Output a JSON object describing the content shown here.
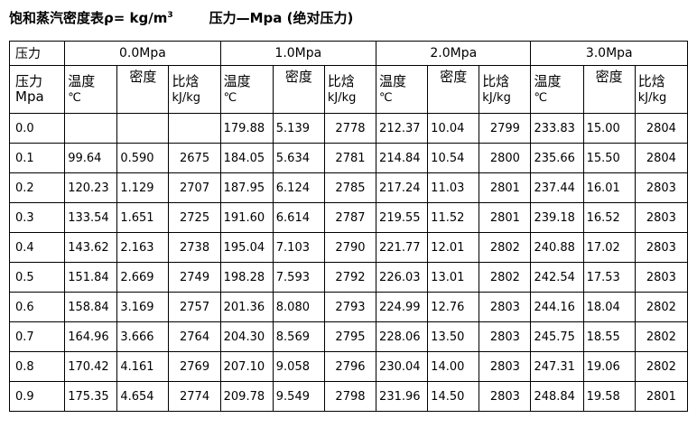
{
  "title": {
    "main": "饱和蒸汽密度表ρ= kg/m",
    "sup": "3",
    "sub": "压力—Mpa (绝对压力)"
  },
  "header": {
    "pressure_label": "压力",
    "groups": [
      "0.0Mpa",
      "1.0Mpa",
      "2.0Mpa",
      "3.0Mpa"
    ],
    "pressure_col": [
      "压力",
      "Mpa"
    ],
    "temp": [
      "温度",
      "℃"
    ],
    "density": "密度",
    "enthalpy": [
      "比焓",
      "kJ/kg"
    ]
  },
  "rows": [
    {
      "p": "0.0",
      "v": [
        "",
        "",
        "",
        "179.88",
        "5.139",
        "2778",
        "212.37",
        "10.04",
        "2799",
        "233.83",
        "15.00",
        "2804"
      ]
    },
    {
      "p": "0.1",
      "v": [
        "99.64",
        "0.590",
        "2675",
        "184.05",
        "5.634",
        "2781",
        "214.84",
        "10.54",
        "2800",
        "235.66",
        "15.50",
        "2804"
      ]
    },
    {
      "p": "0.2",
      "v": [
        "120.23",
        "1.129",
        "2707",
        "187.95",
        "6.124",
        "2785",
        "217.24",
        "11.03",
        "2801",
        "237.44",
        "16.01",
        "2803"
      ]
    },
    {
      "p": "0.3",
      "v": [
        "133.54",
        "1.651",
        "2725",
        "191.60",
        "6.614",
        "2787",
        "219.55",
        "11.52",
        "2801",
        "239.18",
        "16.52",
        "2803"
      ]
    },
    {
      "p": "0.4",
      "v": [
        "143.62",
        "2.163",
        "2738",
        "195.04",
        "7.103",
        "2790",
        "221.77",
        "12.01",
        "2802",
        "240.88",
        "17.02",
        "2803"
      ]
    },
    {
      "p": "0.5",
      "v": [
        "151.84",
        "2.669",
        "2749",
        "198.28",
        "7.593",
        "2792",
        "226.03",
        "13.01",
        "2802",
        "242.54",
        "17.53",
        "2803"
      ]
    },
    {
      "p": "0.6",
      "v": [
        "158.84",
        "3.169",
        "2757",
        "201.36",
        "8.080",
        "2793",
        "224.99",
        "12.76",
        "2803",
        "244.16",
        "18.04",
        "2802"
      ]
    },
    {
      "p": "0.7",
      "v": [
        "164.96",
        "3.666",
        "2764",
        "204.30",
        "8.569",
        "2795",
        "228.06",
        "13.50",
        "2803",
        "245.75",
        "18.55",
        "2802"
      ]
    },
    {
      "p": "0.8",
      "v": [
        "170.42",
        "4.161",
        "2769",
        "207.10",
        "9.058",
        "2796",
        "230.04",
        "14.00",
        "2803",
        "247.31",
        "19.06",
        "2802"
      ]
    },
    {
      "p": "0.9",
      "v": [
        "175.35",
        "4.654",
        "2774",
        "209.78",
        "9.549",
        "2798",
        "231.96",
        "14.50",
        "2803",
        "248.84",
        "19.58",
        "2801"
      ]
    }
  ]
}
